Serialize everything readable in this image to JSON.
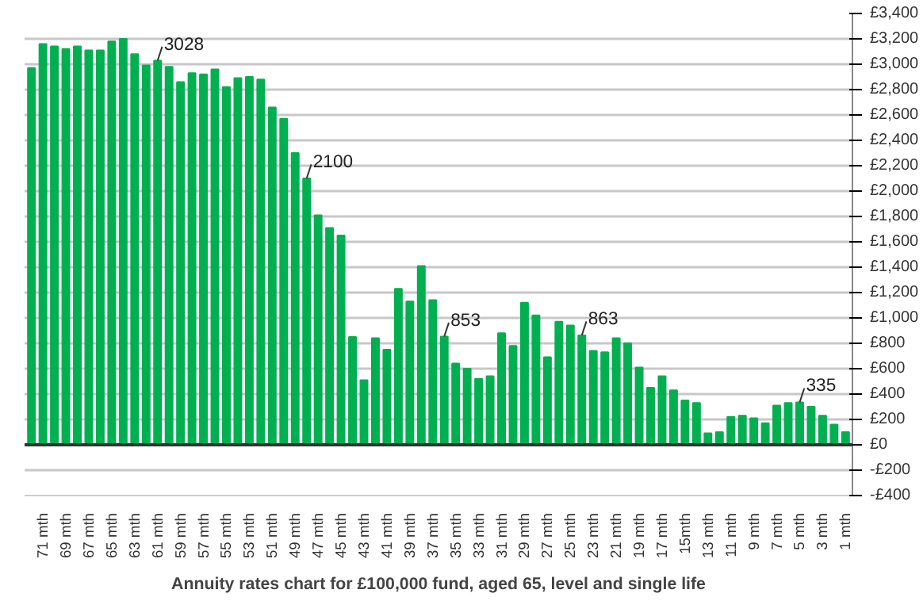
{
  "chart_data": {
    "type": "bar",
    "title": "Annuity rates chart for £100,000 fund, aged 65, level and single life",
    "categories": [
      null,
      "71 mth",
      null,
      "69 mth",
      null,
      "67 mth",
      null,
      "65 mth",
      null,
      "63 mth",
      null,
      "61 mth",
      null,
      "59 mth",
      null,
      "57 mth",
      null,
      "55 mth",
      null,
      "53 mth",
      null,
      "51 mth",
      null,
      "49 mth",
      null,
      "47 mth",
      null,
      "45 mth",
      null,
      "43 mth",
      null,
      "41 mth",
      null,
      "39 mth",
      null,
      "37 mth",
      null,
      "35 mth",
      null,
      "33 mth",
      null,
      "31 mth",
      null,
      "29 mth",
      null,
      "27 mth",
      null,
      "25 mth",
      null,
      "23 mth",
      null,
      "21 mth",
      null,
      "19 mth",
      null,
      "17 mth",
      null,
      "15mth",
      null,
      "13 mth",
      null,
      "11 mth",
      null,
      "9 mth",
      null,
      "7 mth",
      null,
      "5 mth",
      null,
      "3 mth",
      null,
      "1 mth"
    ],
    "values": [
      2970,
      3160,
      3140,
      3120,
      3140,
      3110,
      3110,
      3180,
      3200,
      3080,
      2990,
      3028,
      2980,
      2860,
      2930,
      2920,
      2960,
      2820,
      2890,
      2900,
      2880,
      2660,
      2570,
      2300,
      2100,
      1810,
      1710,
      1650,
      850,
      510,
      840,
      750,
      1230,
      1130,
      1410,
      1140,
      853,
      640,
      600,
      520,
      540,
      880,
      780,
      1120,
      1020,
      690,
      970,
      940,
      863,
      740,
      730,
      840,
      800,
      610,
      450,
      540,
      430,
      350,
      330,
      90,
      100,
      220,
      230,
      210,
      170,
      310,
      330,
      335,
      300,
      230,
      160,
      100
    ],
    "color": "#00b050",
    "value_labels": [
      null,
      null,
      null,
      null,
      null,
      null,
      null,
      null,
      null,
      null,
      null,
      "3028",
      null,
      null,
      null,
      null,
      null,
      null,
      null,
      null,
      null,
      null,
      null,
      null,
      "2100",
      null,
      null,
      null,
      null,
      null,
      null,
      null,
      null,
      null,
      null,
      null,
      "853",
      null,
      null,
      null,
      null,
      null,
      null,
      null,
      null,
      null,
      null,
      null,
      "863",
      null,
      null,
      null,
      null,
      null,
      null,
      null,
      null,
      null,
      null,
      null,
      null,
      null,
      null,
      null,
      null,
      null,
      null,
      "335",
      null,
      null,
      null,
      null
    ],
    "ylim": [
      -400,
      3400
    ],
    "yticks": [
      {
        "value": -400,
        "label": "-£400"
      },
      {
        "value": -200,
        "label": "-£200"
      },
      {
        "value": 0,
        "label": "£0"
      },
      {
        "value": 200,
        "label": "£200"
      },
      {
        "value": 400,
        "label": "£400"
      },
      {
        "value": 600,
        "label": "£600"
      },
      {
        "value": 800,
        "label": "£800"
      },
      {
        "value": 1000,
        "label": "£1,000"
      },
      {
        "value": 1200,
        "label": "£1,200"
      },
      {
        "value": 1400,
        "label": "£1,400"
      },
      {
        "value": 1600,
        "label": "£1,600"
      },
      {
        "value": 1800,
        "label": "£1,800"
      },
      {
        "value": 2000,
        "label": "£2,000"
      },
      {
        "value": 2200,
        "label": "£2,200"
      },
      {
        "value": 2400,
        "label": "£2,400"
      },
      {
        "value": 2600,
        "label": "£2,600"
      },
      {
        "value": 2800,
        "label": "£2,800"
      },
      {
        "value": 3000,
        "label": "£3,000"
      },
      {
        "value": 3200,
        "label": "£3,200"
      },
      {
        "value": 3400,
        "label": "£3,400"
      }
    ],
    "grid": "y"
  }
}
